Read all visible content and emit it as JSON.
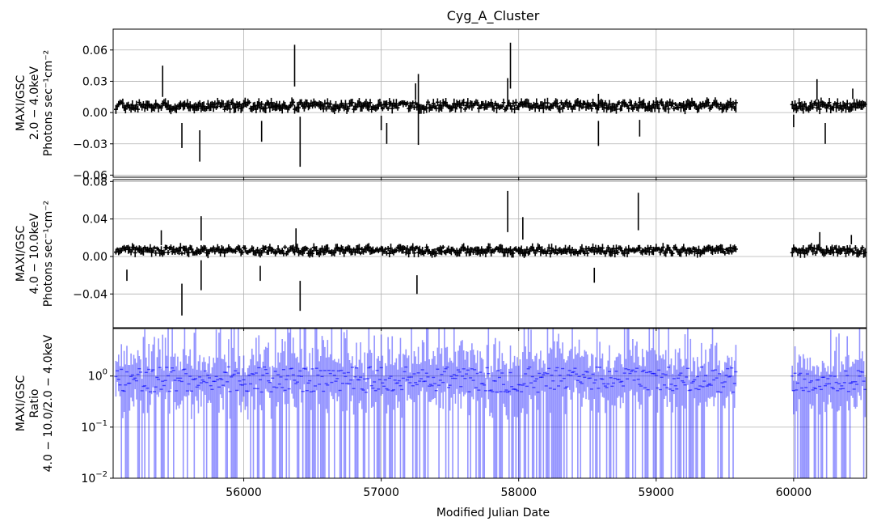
{
  "chart_data": {
    "type": "scatter",
    "title": "Cyg_A_Cluster",
    "xlabel": "Modified Julian Date",
    "xlim": [
      55050,
      60530
    ],
    "xticks": [
      56000,
      57000,
      58000,
      59000,
      60000
    ],
    "grid": true,
    "panels": [
      {
        "id": "soft",
        "ylabel_lines": [
          "MAXI/GSC",
          "2.0 − 4.0keV",
          "Photons sec⁻¹cm⁻²"
        ],
        "ylim": [
          -0.062,
          0.08
        ],
        "yscale": "linear",
        "yticks": [
          -0.06,
          -0.03,
          0.0,
          0.03,
          0.06
        ],
        "ytick_labels": [
          "−0.06",
          "−0.03",
          "0.00",
          "0.03",
          "0.06"
        ],
        "color": "#000000",
        "bin_days": 10,
        "gap": [
          59580,
          59990
        ],
        "outliers": [
          {
            "x": 55410,
            "y": 0.03,
            "err": 0.015
          },
          {
            "x": 55550,
            "y": -0.022,
            "err": 0.012
          },
          {
            "x": 55680,
            "y": -0.032,
            "err": 0.015
          },
          {
            "x": 56130,
            "y": -0.018,
            "err": 0.01
          },
          {
            "x": 56370,
            "y": 0.045,
            "err": 0.02
          },
          {
            "x": 56410,
            "y": -0.028,
            "err": 0.024
          },
          {
            "x": 57000,
            "y": -0.01,
            "err": 0.007
          },
          {
            "x": 57040,
            "y": -0.02,
            "err": 0.01
          },
          {
            "x": 57250,
            "y": 0.02,
            "err": 0.008
          },
          {
            "x": 57270,
            "y": 0.003,
            "err": 0.034
          },
          {
            "x": 57920,
            "y": 0.02,
            "err": 0.013
          },
          {
            "x": 57940,
            "y": 0.045,
            "err": 0.022
          },
          {
            "x": 58580,
            "y": -0.02,
            "err": 0.012
          },
          {
            "x": 58580,
            "y": 0.01,
            "err": 0.008
          },
          {
            "x": 58880,
            "y": -0.015,
            "err": 0.008
          },
          {
            "x": 59580,
            "y": 0.005,
            "err": 0.005
          },
          {
            "x": 60000,
            "y": -0.008,
            "err": 0.006
          },
          {
            "x": 60170,
            "y": 0.022,
            "err": 0.01
          },
          {
            "x": 60230,
            "y": -0.02,
            "err": 0.01
          },
          {
            "x": 60430,
            "y": 0.018,
            "err": 0.005
          }
        ]
      },
      {
        "id": "hard",
        "ylabel_lines": [
          "MAXI/GSC",
          "4.0 − 10.0keV",
          "Photons sec⁻¹cm⁻²"
        ],
        "ylim": [
          -0.076,
          0.082
        ],
        "yscale": "linear",
        "yticks": [
          -0.04,
          0.0,
          0.04,
          0.08
        ],
        "ytick_labels": [
          "−0.04",
          "0.00",
          "0.04",
          "0.08"
        ],
        "color": "#000000",
        "bin_days": 10,
        "gap": [
          59580,
          59990
        ],
        "outliers": [
          {
            "x": 55150,
            "y": -0.02,
            "err": 0.006
          },
          {
            "x": 55400,
            "y": 0.02,
            "err": 0.008
          },
          {
            "x": 55550,
            "y": -0.046,
            "err": 0.017
          },
          {
            "x": 55690,
            "y": 0.03,
            "err": 0.013
          },
          {
            "x": 55690,
            "y": -0.02,
            "err": 0.016
          },
          {
            "x": 56120,
            "y": -0.018,
            "err": 0.008
          },
          {
            "x": 56380,
            "y": 0.02,
            "err": 0.01
          },
          {
            "x": 56410,
            "y": -0.042,
            "err": 0.016
          },
          {
            "x": 57260,
            "y": -0.03,
            "err": 0.01
          },
          {
            "x": 57920,
            "y": 0.048,
            "err": 0.022
          },
          {
            "x": 58030,
            "y": 0.03,
            "err": 0.012
          },
          {
            "x": 58550,
            "y": -0.02,
            "err": 0.008
          },
          {
            "x": 58870,
            "y": 0.048,
            "err": 0.02
          },
          {
            "x": 60190,
            "y": 0.018,
            "err": 0.008
          },
          {
            "x": 60420,
            "y": 0.018,
            "err": 0.005
          }
        ]
      },
      {
        "id": "ratio",
        "ylabel_lines": [
          "MAXI/GSC",
          "Ratio",
          "4.0 − 10.0/2.0 − 4.0keV"
        ],
        "ylim": [
          0.01,
          8.5
        ],
        "yscale": "log",
        "yticks": [
          0.01,
          0.1,
          1
        ],
        "ytick_labels": [
          "10",
          "10",
          "10"
        ],
        "ytick_exponents": [
          "−2",
          "−1",
          "0"
        ],
        "color": "#0000ff",
        "bin_days": 10,
        "gap": [
          59580,
          59990
        ]
      }
    ]
  }
}
